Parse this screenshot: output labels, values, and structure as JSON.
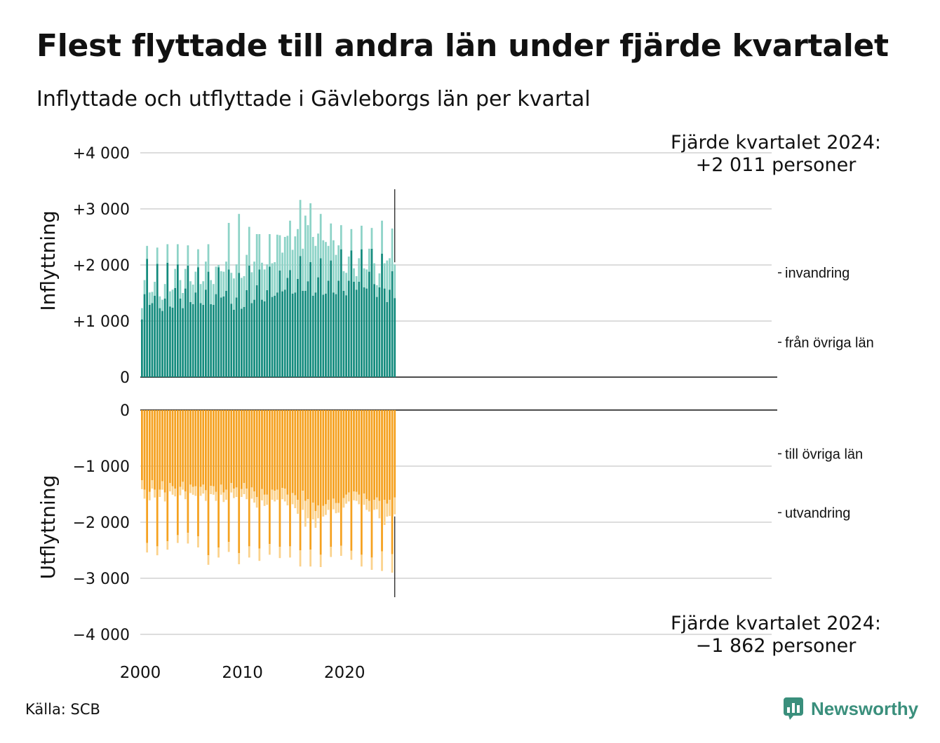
{
  "title": "Flest flyttade till andra län under fjärde kvartalet",
  "subtitle": "Inflyttade och utflyttade i Gävleborgs län per kvartal",
  "source": "Källa: SCB",
  "brand": "Newsworthy",
  "colors": {
    "inflytt_ovriga": "#138b7d",
    "invandring": "#8dd3c7",
    "utflytt_ovriga": "#f5a11f",
    "utvandring": "#fbd28c",
    "brand": "#3a8f7c",
    "grid": "#dddddd"
  },
  "chart_data": {
    "type": "bar",
    "stacked": true,
    "x_ticks": [
      "2000",
      "2010",
      "2020"
    ],
    "start_year": 2000,
    "periods": 100,
    "panels": [
      {
        "id": "inflyttning",
        "ylabel": "Inflyttning",
        "ylim": [
          0,
          4000
        ],
        "y_ticks": [
          0,
          1000,
          2000,
          3000,
          4000
        ],
        "y_tick_labels": [
          "0",
          "+1 000",
          "+2 000",
          "+3 000",
          "+4 000"
        ],
        "series": [
          {
            "name": "från övriga län",
            "values": [
              1030,
              1480,
              2110,
              1290,
              1320,
              1450,
              2020,
              1230,
              1180,
              1400,
              2040,
              1260,
              1240,
              1590,
              2010,
              1400,
              1230,
              1580,
              1990,
              1340,
              1300,
              1510,
              1960,
              1320,
              1290,
              1560,
              1880,
              1300,
              1290,
              1480,
              1960,
              1420,
              1440,
              1540,
              1920,
              1310,
              1200,
              1420,
              1860,
              1220,
              1250,
              1550,
              1990,
              1320,
              1380,
              1640,
              1920,
              1380,
              1350,
              1550,
              1970,
              1430,
              1450,
              1510,
              1900,
              1530,
              1560,
              1770,
              1910,
              1490,
              1510,
              1750,
              2160,
              1540,
              1540,
              1710,
              2050,
              1450,
              1510,
              1780,
              2120,
              1470,
              1490,
              1720,
              2080,
              1510,
              1480,
              1720,
              2280,
              1540,
              1460,
              1720,
              2260,
              1700,
              1560,
              1700,
              2280,
              1600,
              1580,
              1880,
              2290,
              1660,
              1430,
              1600,
              2200,
              1580,
              1340,
              1560,
              1890,
              1410
            ]
          },
          {
            "name": "invandring",
            "values": [
              200,
              250,
              230,
              220,
              200,
              250,
              290,
              210,
              200,
              260,
              330,
              270,
              320,
              340,
              360,
              330,
              270,
              350,
              360,
              370,
              350,
              370,
              320,
              340,
              420,
              500,
              490,
              430,
              370,
              490,
              40,
              470,
              440,
              520,
              830,
              550,
              560,
              590,
              1050,
              550,
              550,
              630,
              690,
              550,
              680,
              910,
              630,
              660,
              570,
              460,
              580,
              600,
              600,
              1030,
              630,
              690,
              940,
              750,
              880,
              780,
              1000,
              890,
              1000,
              750,
              1340,
              1000,
              1050,
              1050,
              830,
              780,
              790,
              970,
              920,
              620,
              660,
              930,
              700,
              630,
              430,
              350,
              400,
              430,
              380,
              240,
              240,
              420,
              420,
              340,
              340,
              410,
              370,
              370,
              210,
              250,
              590,
              450,
              740,
              560,
              760,
              600
            ]
          }
        ],
        "annotation": {
          "line1": "Fjärde kvartalet 2024:",
          "line2": "+2 011 personer"
        }
      },
      {
        "id": "utflyttning",
        "ylabel": "Utflyttning",
        "ylim": [
          -4000,
          0
        ],
        "y_ticks": [
          0,
          -1000,
          -2000,
          -3000,
          -4000
        ],
        "y_tick_labels": [
          "0",
          "−1 000",
          "−2 000",
          "−3 000",
          "−4 000"
        ],
        "series": [
          {
            "name": "till övriga län",
            "values": [
              -1250,
              -1420,
              -2370,
              -1460,
              -1250,
              -1420,
              -2430,
              -1420,
              -1270,
              -1470,
              -2340,
              -1300,
              -1360,
              -1400,
              -2230,
              -1370,
              -1280,
              -1450,
              -2190,
              -1330,
              -1370,
              -1360,
              -2250,
              -1370,
              -1330,
              -1430,
              -2590,
              -1350,
              -1360,
              -1460,
              -2450,
              -1330,
              -1470,
              -1420,
              -2350,
              -1300,
              -1400,
              -1380,
              -2550,
              -1410,
              -1300,
              -1400,
              -2430,
              -1380,
              -1450,
              -1550,
              -2470,
              -1410,
              -1510,
              -1510,
              -2390,
              -1420,
              -1440,
              -1420,
              -2440,
              -1390,
              -1400,
              -1510,
              -2430,
              -1480,
              -1520,
              -1600,
              -2500,
              -1440,
              -1620,
              -1590,
              -2490,
              -1650,
              -1800,
              -1700,
              -2580,
              -1710,
              -1680,
              -1600,
              -2440,
              -1580,
              -1660,
              -1660,
              -2420,
              -1570,
              -1510,
              -1470,
              -2510,
              -1450,
              -1460,
              -1510,
              -2580,
              -1490,
              -1590,
              -1620,
              -2630,
              -1600,
              -1560,
              -1620,
              -2520,
              -1600,
              -1670,
              -1600,
              -2570,
              -1560
            ]
          },
          {
            "name": "utvandring",
            "values": [
              -160,
              -160,
              -170,
              -150,
              -150,
              -140,
              -160,
              -130,
              -150,
              -160,
              -150,
              -150,
              -150,
              -140,
              -140,
              -150,
              -140,
              -140,
              -190,
              -150,
              -140,
              -170,
              -200,
              -160,
              -160,
              -190,
              -170,
              -150,
              -150,
              -160,
              -180,
              -180,
              -170,
              -180,
              -180,
              -170,
              -170,
              -170,
              -200,
              -140,
              -200,
              -190,
              -200,
              -200,
              -200,
              -190,
              -220,
              -200,
              -200,
              -180,
              -190,
              -180,
              -190,
              -180,
              -200,
              -200,
              -230,
              -190,
              -200,
              -200,
              -230,
              -250,
              -290,
              -340,
              -460,
              -340,
              -300,
              -300,
              -300,
              -230,
              -220,
              -190,
              -190,
              -180,
              -180,
              -190,
              -180,
              -170,
              -180,
              -170,
              -160,
              -160,
              -160,
              -160,
              -160,
              -170,
              -210,
              -200,
              -190,
              -190,
              -220,
              -180,
              -210,
              -310,
              -350,
              -450,
              -230,
              -290,
              -330,
              -300
            ]
          }
        ],
        "annotation": {
          "line1": "Fjärde kvartalet 2024:",
          "line2": "−1 862 personer"
        }
      }
    ]
  }
}
